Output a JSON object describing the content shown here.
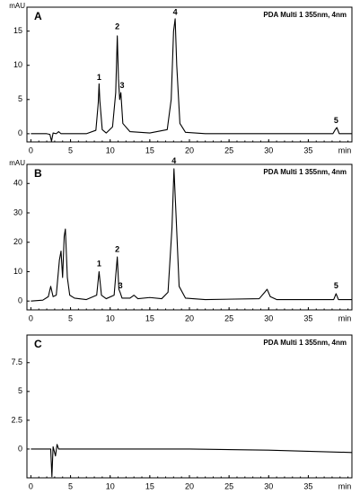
{
  "chart_data": [
    {
      "type": "line",
      "title": "A",
      "annotation": "PDA Multi 1 355nm, 4nm",
      "ylabel": "mAU",
      "xlabel": "min",
      "peak_labels": [
        "1",
        "2",
        "3",
        "4",
        "5"
      ],
      "xlim": [
        -0.5,
        40.5
      ],
      "xticks": [
        0,
        5,
        10,
        15,
        20,
        25,
        30,
        35
      ],
      "ylim": [
        -1.2,
        18.5
      ],
      "yticks": [
        0,
        5,
        10,
        15
      ],
      "series": [
        {
          "color": "#000000",
          "x": [
            0,
            1,
            2,
            2.4,
            2.6,
            2.8,
            3.2,
            3.5,
            3.8,
            5,
            7,
            8.2,
            8.5,
            8.6,
            8.7,
            9.0,
            9.5,
            10.3,
            10.7,
            10.9,
            11.05,
            11.2,
            11.35,
            11.6,
            12.5,
            15,
            17.2,
            17.7,
            18.0,
            18.2,
            18.4,
            18.8,
            19.5,
            22,
            30,
            38.1,
            38.4,
            38.6,
            38.9,
            40.5
          ],
          "values": [
            0,
            0,
            0,
            -0.1,
            -1.1,
            0.1,
            0,
            0.3,
            0,
            0,
            0,
            0.5,
            4.5,
            7.3,
            4.8,
            0.6,
            0.1,
            1.0,
            6,
            14.3,
            8,
            5,
            6,
            1.5,
            0.3,
            0.1,
            0.6,
            5,
            15,
            16.8,
            10,
            1.5,
            0.2,
            0,
            0,
            0,
            0.6,
            0.9,
            0,
            0
          ]
        }
      ]
    },
    {
      "type": "line",
      "title": "B",
      "annotation": "PDA Multi 1 355nm, 4nm",
      "ylabel": "mAU",
      "xlabel": "min",
      "peak_labels": [
        "1",
        "2",
        "3",
        "4",
        "5"
      ],
      "xlim": [
        -0.5,
        40.5
      ],
      "xticks": [
        0,
        5,
        10,
        15,
        20,
        25,
        30,
        35
      ],
      "ylim": [
        -3,
        46.5
      ],
      "yticks": [
        0,
        10,
        20,
        30,
        40
      ],
      "series": [
        {
          "color": "#000000",
          "x": [
            0,
            1.5,
            2.2,
            2.5,
            2.8,
            3.2,
            3.6,
            3.8,
            4.0,
            4.2,
            4.35,
            4.6,
            4.9,
            5.5,
            7,
            8.3,
            8.6,
            8.9,
            9.5,
            10.5,
            10.9,
            11.1,
            11.25,
            11.5,
            12.5,
            13,
            13.5,
            15,
            16.5,
            17.3,
            17.8,
            18.05,
            18.3,
            18.7,
            19.5,
            22,
            28.8,
            29.5,
            29.8,
            30.2,
            31,
            38.2,
            38.5,
            38.8,
            40.5
          ],
          "values": [
            0,
            0.3,
            1.5,
            5,
            1.5,
            2,
            14,
            17,
            8,
            22,
            24.5,
            8,
            2,
            1,
            0.5,
            2,
            10,
            2,
            0.8,
            2,
            15,
            4,
            3,
            1,
            1,
            2,
            0.8,
            1.2,
            0.8,
            3,
            25,
            45,
            30,
            5,
            1,
            0.5,
            0.8,
            3,
            4,
            1.5,
            0.5,
            0.5,
            2.5,
            0.5,
            0.5
          ]
        }
      ]
    },
    {
      "type": "line",
      "title": "C",
      "annotation": "PDA Multi 1 355nm, 4nm",
      "xlabel": "min",
      "xlim": [
        -0.5,
        40.5
      ],
      "xticks": [
        0,
        5,
        10,
        15,
        20,
        25,
        30,
        35
      ],
      "ylim": [
        -2.5,
        9.9
      ],
      "yticks": [
        7.5,
        5,
        2.5,
        0
      ],
      "series": [
        {
          "color": "#000000",
          "x": [
            0,
            2,
            2.5,
            2.65,
            2.8,
            3.1,
            3.3,
            3.5,
            4,
            10,
            20,
            30,
            40.5
          ],
          "values": [
            0,
            0,
            0,
            -2.4,
            0.2,
            -0.6,
            0.4,
            0,
            0,
            0,
            0,
            -0.1,
            -0.3
          ]
        }
      ]
    }
  ]
}
